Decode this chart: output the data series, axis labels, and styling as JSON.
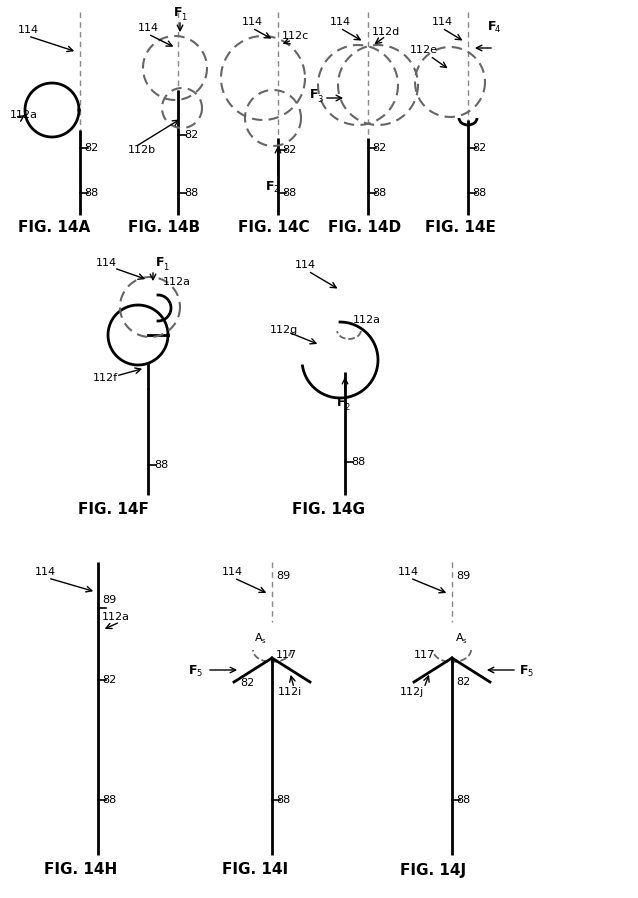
{
  "bg_color": "#ffffff",
  "line_color": "#000000",
  "dashed_color": "#666666",
  "fig_labels": [
    "FIG. 14A",
    "FIG. 14B",
    "FIG. 14C",
    "FIG. 14D",
    "FIG. 14E",
    "FIG. 14F",
    "FIG. 14G",
    "FIG. 14H",
    "FIG. 14I",
    "FIG. 14J"
  ],
  "label_fontsize": 11,
  "annot_fontsize": 8
}
